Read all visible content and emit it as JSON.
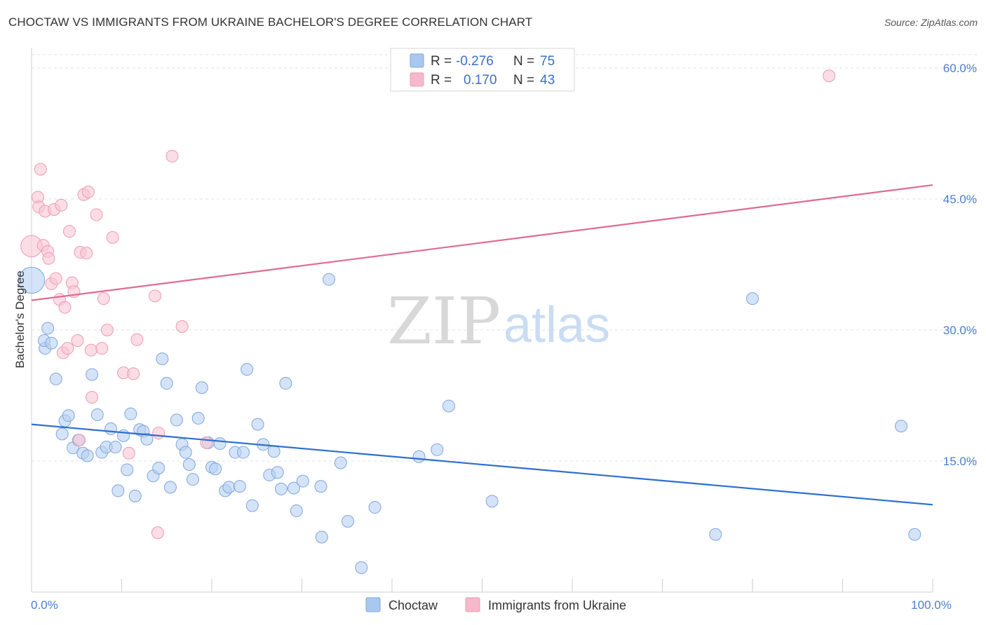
{
  "header": {
    "title": "CHOCTAW VS IMMIGRANTS FROM UKRAINE BACHELOR'S DEGREE CORRELATION CHART",
    "source": "Source: ZipAtlas.com"
  },
  "watermark": {
    "zip": "ZIP",
    "atlas": "atlas"
  },
  "legend": {
    "r_label": "R =",
    "n_label": "N =",
    "rows": [
      {
        "r": "-0.276",
        "n": "75",
        "color": "#a9c8f0"
      },
      {
        "r": "0.170",
        "n": "43",
        "color": "#f6b8cb"
      }
    ]
  },
  "colors": {
    "choctaw_fill": "#b8d1f2",
    "choctaw_stroke": "#7fa7de",
    "choctaw_line": "#2c6fd0",
    "ukraine_fill": "#f8c6d4",
    "ukraine_stroke": "#ef9bb5",
    "ukraine_line": "#e06a94",
    "tick_text": "#4a7fd0"
  },
  "chart_data": {
    "type": "scatter",
    "title": "CHOCTAW VS IMMIGRANTS FROM UKRAINE BACHELOR'S DEGREE CORRELATION CHART",
    "xlabel": "",
    "ylabel": "Bachelor's Degree",
    "xlim": [
      0,
      100
    ],
    "ylim": [
      0,
      61.5
    ],
    "x_tick_labels": [
      "0.0%",
      "100.0%"
    ],
    "y_ticks": [
      15,
      30,
      45,
      60
    ],
    "y_tick_labels": [
      "15.0%",
      "30.0%",
      "45.0%",
      "60.0%"
    ],
    "grid": true,
    "legend_position": "top-center",
    "series": [
      {
        "name": "Choctaw",
        "trend": {
          "x": [
            0,
            100
          ],
          "y": [
            19.2,
            10.0
          ]
        },
        "points": [
          [
            0,
            35.7,
            2.2
          ],
          [
            1.5,
            27.9,
            1
          ],
          [
            1.4,
            28.8,
            1
          ],
          [
            1.8,
            30.2,
            1
          ],
          [
            2.2,
            28.5,
            1
          ],
          [
            2.7,
            24.4,
            1
          ],
          [
            3.4,
            18.1,
            1
          ],
          [
            3.7,
            19.6,
            1
          ],
          [
            4.1,
            20.2,
            1
          ],
          [
            4.6,
            16.5,
            1
          ],
          [
            5.2,
            17.4,
            1
          ],
          [
            5.7,
            15.9,
            1
          ],
          [
            6.2,
            15.6,
            1
          ],
          [
            6.7,
            24.9,
            1
          ],
          [
            7.3,
            20.3,
            1
          ],
          [
            7.8,
            16.0,
            1
          ],
          [
            8.3,
            16.6,
            1
          ],
          [
            8.8,
            18.7,
            1
          ],
          [
            9.3,
            16.6,
            1
          ],
          [
            9.6,
            11.6,
            1
          ],
          [
            10.2,
            17.9,
            1
          ],
          [
            10.6,
            14.0,
            1
          ],
          [
            11.0,
            20.4,
            1
          ],
          [
            11.5,
            11.0,
            1
          ],
          [
            12.0,
            18.6,
            1
          ],
          [
            12.4,
            18.4,
            1
          ],
          [
            12.8,
            17.5,
            1
          ],
          [
            13.5,
            13.3,
            1
          ],
          [
            14.1,
            14.2,
            1
          ],
          [
            14.5,
            26.7,
            1
          ],
          [
            15.0,
            23.9,
            1
          ],
          [
            15.4,
            12.0,
            1
          ],
          [
            16.1,
            19.7,
            1
          ],
          [
            16.7,
            16.9,
            1
          ],
          [
            17.1,
            16.0,
            1
          ],
          [
            17.5,
            14.6,
            1
          ],
          [
            17.9,
            12.9,
            1
          ],
          [
            18.5,
            19.9,
            1
          ],
          [
            18.9,
            23.4,
            1
          ],
          [
            19.6,
            17.1,
            1
          ],
          [
            20.0,
            14.3,
            1
          ],
          [
            20.4,
            14.1,
            1
          ],
          [
            20.9,
            17.0,
            1
          ],
          [
            21.5,
            11.6,
            1
          ],
          [
            21.9,
            12.0,
            1
          ],
          [
            22.6,
            16.0,
            1
          ],
          [
            23.1,
            12.1,
            1
          ],
          [
            23.5,
            16.0,
            1
          ],
          [
            23.9,
            25.5,
            1
          ],
          [
            24.5,
            9.9,
            1
          ],
          [
            25.1,
            19.2,
            1
          ],
          [
            25.7,
            16.9,
            1
          ],
          [
            26.4,
            13.4,
            1
          ],
          [
            26.9,
            16.1,
            1
          ],
          [
            27.3,
            13.7,
            1
          ],
          [
            27.7,
            11.8,
            1
          ],
          [
            28.2,
            23.9,
            1
          ],
          [
            29.1,
            11.9,
            1
          ],
          [
            29.4,
            9.3,
            1
          ],
          [
            30.1,
            12.7,
            1
          ],
          [
            32.1,
            12.1,
            1
          ],
          [
            32.2,
            6.3,
            1
          ],
          [
            33.0,
            35.8,
            1
          ],
          [
            34.3,
            14.8,
            1
          ],
          [
            35.1,
            8.1,
            1
          ],
          [
            36.6,
            2.8,
            1
          ],
          [
            38.1,
            9.7,
            1
          ],
          [
            43.0,
            15.5,
            1
          ],
          [
            45.0,
            16.3,
            1
          ],
          [
            46.3,
            21.3,
            1
          ],
          [
            51.1,
            10.4,
            1
          ],
          [
            75.9,
            6.6,
            1
          ],
          [
            80.0,
            33.6,
            1
          ],
          [
            96.5,
            19.0,
            1
          ],
          [
            98.0,
            6.6,
            1
          ]
        ]
      },
      {
        "name": "Immigrants from Ukraine",
        "trend": {
          "x": [
            0,
            100
          ],
          "y": [
            33.4,
            46.6
          ]
        },
        "points": [
          [
            0,
            39.6,
            1.8
          ],
          [
            0.7,
            45.2,
            1
          ],
          [
            0.8,
            44.1,
            1
          ],
          [
            1.0,
            48.4,
            1
          ],
          [
            1.3,
            39.7,
            1
          ],
          [
            1.5,
            43.6,
            1
          ],
          [
            1.8,
            39.0,
            1
          ],
          [
            1.9,
            38.2,
            1
          ],
          [
            2.2,
            35.3,
            1
          ],
          [
            2.5,
            43.8,
            1
          ],
          [
            2.7,
            35.9,
            1
          ],
          [
            3.1,
            33.5,
            1
          ],
          [
            3.3,
            44.3,
            1
          ],
          [
            3.5,
            27.4,
            1
          ],
          [
            3.7,
            32.6,
            1
          ],
          [
            4.0,
            27.9,
            1
          ],
          [
            4.2,
            41.3,
            1
          ],
          [
            4.5,
            35.4,
            1
          ],
          [
            4.7,
            34.4,
            1
          ],
          [
            5.1,
            28.8,
            1
          ],
          [
            5.3,
            17.4,
            1
          ],
          [
            5.4,
            38.9,
            1
          ],
          [
            5.8,
            45.5,
            1
          ],
          [
            6.1,
            38.8,
            1
          ],
          [
            6.3,
            45.8,
            1
          ],
          [
            6.6,
            27.7,
            1
          ],
          [
            6.7,
            22.3,
            1
          ],
          [
            7.2,
            43.2,
            1
          ],
          [
            7.8,
            27.9,
            1
          ],
          [
            8.0,
            33.6,
            1
          ],
          [
            8.4,
            30.0,
            1
          ],
          [
            9.0,
            40.6,
            1
          ],
          [
            10.2,
            25.1,
            1
          ],
          [
            10.8,
            15.9,
            1
          ],
          [
            11.3,
            25.0,
            1
          ],
          [
            11.7,
            28.9,
            1
          ],
          [
            13.7,
            33.9,
            1
          ],
          [
            14.1,
            18.2,
            1
          ],
          [
            14.0,
            6.8,
            1
          ],
          [
            15.6,
            49.9,
            1
          ],
          [
            16.7,
            30.4,
            1
          ],
          [
            19.4,
            17.1,
            1
          ],
          [
            88.5,
            59.1,
            1
          ]
        ]
      }
    ]
  },
  "bottom_legend": {
    "items": [
      {
        "label": "Choctaw",
        "color": "#a9c8f0"
      },
      {
        "label": "Immigrants from Ukraine",
        "color": "#f6b8cb"
      }
    ]
  }
}
